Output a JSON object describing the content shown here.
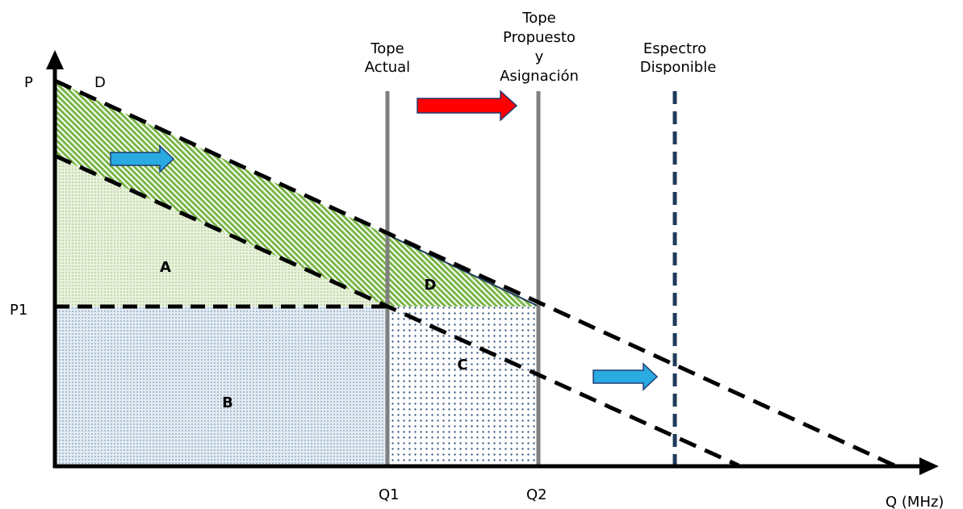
{
  "axes": {
    "y_label": "P",
    "x_label": "Q (MHz)",
    "p1_label": "P1",
    "q1_label": "Q1",
    "q2_label": "Q2"
  },
  "curves": {
    "demand_label": "D"
  },
  "lines": {
    "current_cap": [
      "Tope",
      "Actual"
    ],
    "proposed_cap": [
      "Tope",
      "Propuesto",
      "y",
      "Asignación"
    ],
    "available_spectrum": [
      "Espectro",
      "Disponible"
    ]
  },
  "regions": {
    "a": "A",
    "b": "B",
    "c": "C",
    "d": "D"
  },
  "colors": {
    "green_hatch": "#7ab648",
    "light_green": "#c5dba9",
    "dot_blue": "#5a7fa6",
    "navy": "#1f3b5a",
    "gray_line": "#7f7f7f",
    "red_arrow": "#ff0000",
    "blue_arrow": "#29abe2",
    "arrow_outline": "#1f3b73"
  }
}
